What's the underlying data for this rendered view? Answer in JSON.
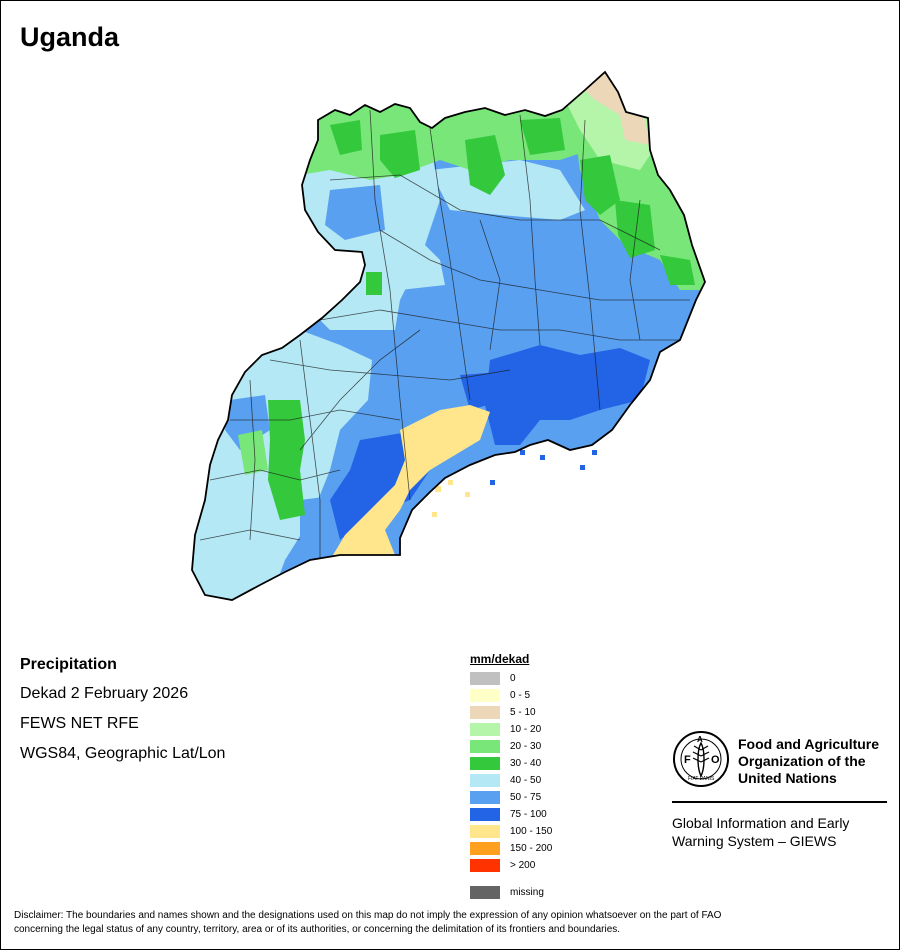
{
  "map_title": "Uganda",
  "info": {
    "heading": "Precipitation",
    "line1": "Dekad 2 February 2026",
    "line2": "FEWS NET RFE",
    "line3": "WGS84, Geographic Lat/Lon"
  },
  "legend": {
    "title": "mm/dekad",
    "items": [
      {
        "label": "0",
        "color": "#c0c0c0"
      },
      {
        "label": "0 - 5",
        "color": "#ffffc8"
      },
      {
        "label": "5 - 10",
        "color": "#ecd8b8"
      },
      {
        "label": "10 - 20",
        "color": "#b4f5aa"
      },
      {
        "label": "20 - 30",
        "color": "#78e678"
      },
      {
        "label": "30 - 40",
        "color": "#34c83c"
      },
      {
        "label": "40 - 50",
        "color": "#b4e8f5"
      },
      {
        "label": "50 - 75",
        "color": "#5aa0f0"
      },
      {
        "label": "75 - 100",
        "color": "#2364e6"
      },
      {
        "label": "100 - 150",
        "color": "#ffe68c"
      },
      {
        "label": "150 - 200",
        "color": "#ffa01e"
      },
      {
        "label": "> 200",
        "color": "#ff3200"
      }
    ],
    "missing": {
      "label": "missing",
      "color": "#646464"
    }
  },
  "org": {
    "line1": "Food and Agriculture",
    "line2": "Organization of the",
    "line3": "United Nations",
    "emblem_motto": "FIAT PANIS",
    "system_line1": "Global Information and Early",
    "system_line2": "Warning System – GIEWS"
  },
  "disclaimer_line1": "Disclaimer: The boundaries and names shown and the designations used on this map do not imply the expression of any opinion whatsoever on the part of FAO",
  "disclaimer_line2": "concerning the legal status of any country, territory, area or of its authorities, or concerning the delimitation of its frontiers and boundaries."
}
